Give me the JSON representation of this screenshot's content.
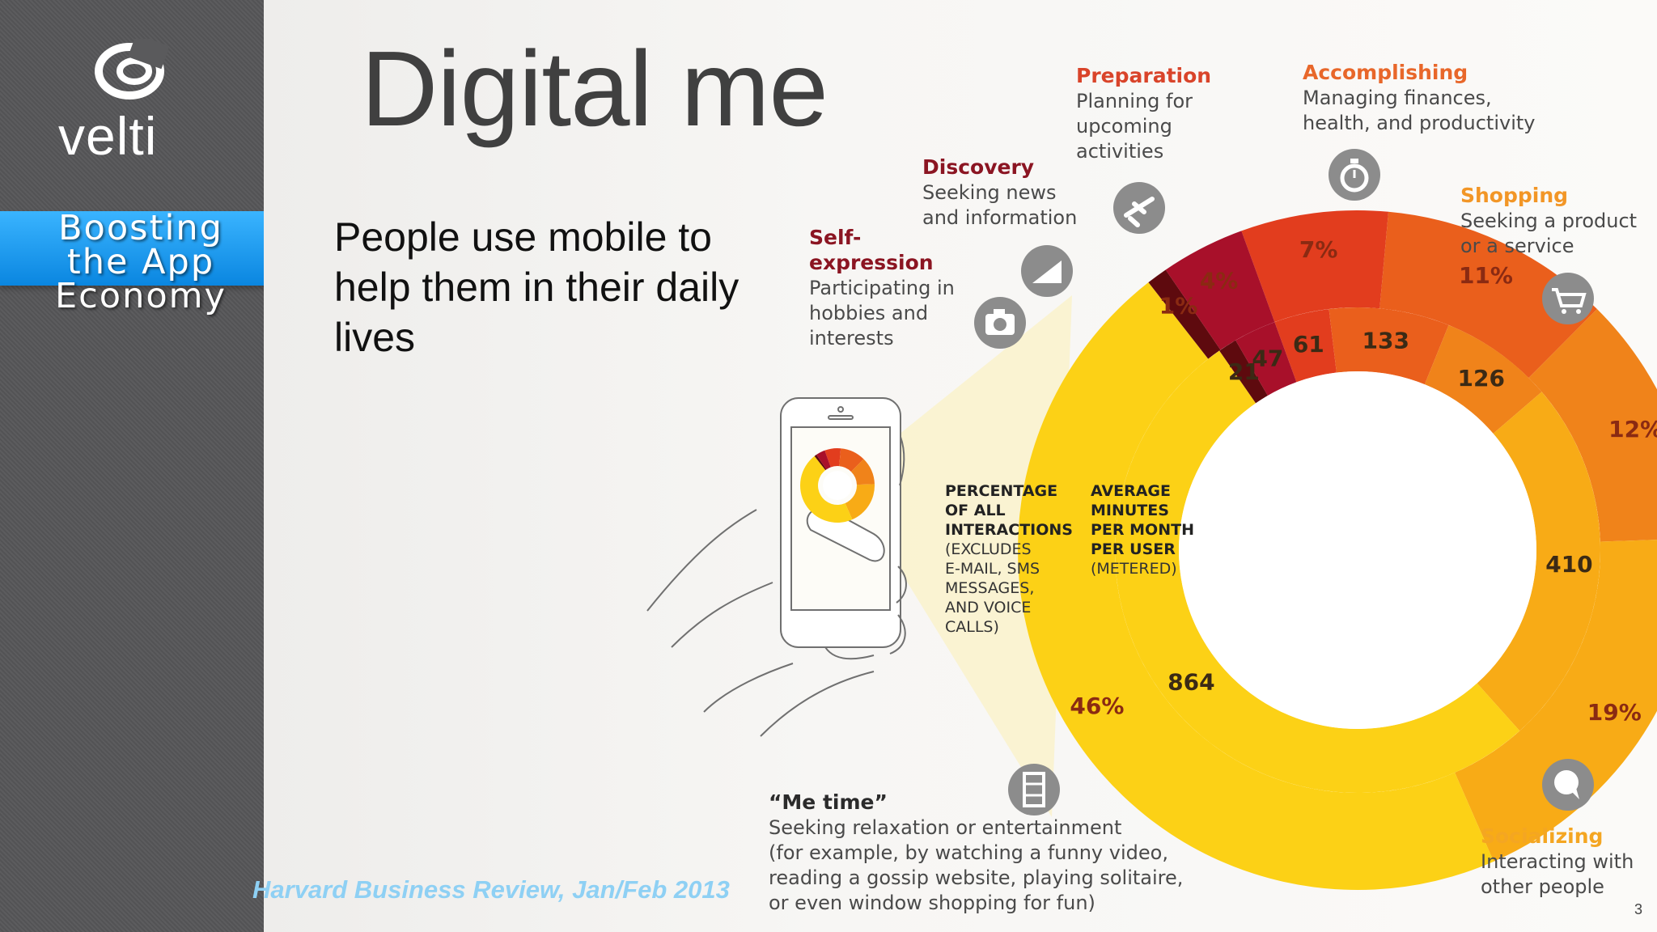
{
  "brand": {
    "name": "velti"
  },
  "ribbon": {
    "line1": "Boosting",
    "line2": "the App",
    "line3": "Economy"
  },
  "slide": {
    "title": "Digital me",
    "subtitle": "People use mobile to help them in their daily lives",
    "source": "Harvard Business Review, Jan/Feb 2013",
    "page_number": "3"
  },
  "chart_data": {
    "type": "donut",
    "legend": {
      "outer_ring": [
        "PERCENTAGE",
        "OF ALL",
        "INTERACTIONS",
        "(EXCLUDES",
        "E-MAIL, SMS",
        "MESSAGES,",
        "AND VOICE",
        "CALLS)"
      ],
      "inner_ring": [
        "AVERAGE",
        "MINUTES",
        "PER MONTH",
        "PER USER",
        "(METERED)"
      ]
    },
    "categories": [
      {
        "name": "Preparation",
        "description": [
          "Planning for",
          "upcoming",
          "activities"
        ],
        "percent": 7,
        "percent_label": "7%",
        "minutes": 61,
        "color": "#e23d1e",
        "icon": "plane-icon"
      },
      {
        "name": "Accomplishing",
        "description": [
          "Managing finances,",
          "health, and productivity"
        ],
        "percent": 11,
        "percent_label": "11%",
        "minutes": 133,
        "color": "#ea5f1c",
        "icon": "stopwatch-icon"
      },
      {
        "name": "Shopping",
        "description": [
          "Seeking a product",
          "or a service"
        ],
        "percent": 12,
        "percent_label": "12%",
        "minutes": 126,
        "color": "#f0831a",
        "icon": "cart-icon"
      },
      {
        "name": "Socializing",
        "description": [
          "Interacting with",
          "other people"
        ],
        "percent": 19,
        "percent_label": "19%",
        "minutes": 410,
        "color": "#f8ab16",
        "icon": "speech-bubble-icon"
      },
      {
        "name": "“Me time”",
        "description": [
          "Seeking relaxation or entertainment",
          "(for example, by watching a funny video,",
          "reading a gossip website, playing solitaire,",
          "or even window shopping for fun)"
        ],
        "percent": 46,
        "percent_label": "46%",
        "minutes": 864,
        "color": "#fcd116",
        "icon": "film-icon"
      },
      {
        "name": "Self-expression",
        "description": [
          "Participating in",
          "hobbies and",
          "interests"
        ],
        "percent": 1,
        "percent_label": "1%",
        "minutes": 21,
        "color": "#5e0a0e",
        "icon": "camera-icon"
      },
      {
        "name": "Discovery",
        "description": [
          "Seeking news",
          "and information"
        ],
        "percent": 4,
        "percent_label": "4%",
        "minutes": 47,
        "color": "#a8102a",
        "icon": "bar-chart-icon"
      }
    ],
    "title_colors": {
      "Preparation": "#d9442a",
      "Accomplishing": "#e8672a",
      "Shopping": "#f29626",
      "Socializing": "#f4a622",
      "“Me time”": "#2b2b2b",
      "Self-expression": "#8b1522",
      "Discovery": "#8b1522"
    }
  }
}
